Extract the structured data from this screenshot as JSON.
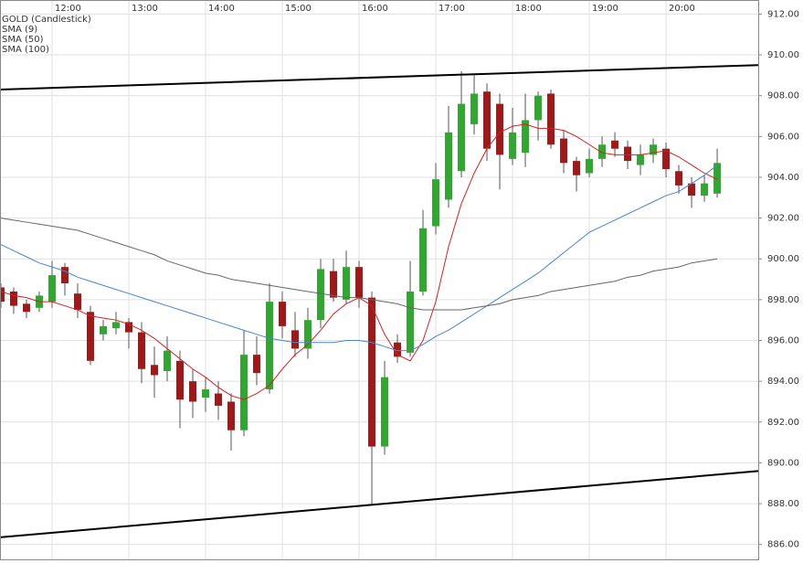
{
  "chart_data": {
    "type": "candlestick",
    "categories": [
      null,
      null,
      null,
      null,
      "12:00",
      null,
      null,
      null,
      null,
      null,
      "13:00",
      null,
      null,
      null,
      null,
      null,
      "14:00",
      null,
      null,
      null,
      null,
      null,
      "15:00",
      null,
      null,
      null,
      null,
      null,
      "16:00",
      null,
      null,
      null,
      null,
      null,
      "17:00",
      null,
      null,
      null,
      null,
      null,
      "18:00",
      null,
      null,
      null,
      null,
      null,
      "19:00",
      null,
      null,
      null,
      null,
      null,
      "20:00",
      null,
      null,
      null,
      null
    ],
    "candles": {
      "name": "GOLD (Candlestick)",
      "color": "#999999",
      "up_color": "#33a532",
      "down_color": "#9e1a1a",
      "open": [
        898.6,
        898.4,
        897.8,
        897.6,
        897.9,
        899.6,
        898.3,
        897.4,
        896.3,
        896.6,
        896.9,
        896.4,
        894.8,
        894.5,
        895.0,
        894.0,
        893.2,
        893.4,
        893.0,
        891.6,
        895.3,
        893.6,
        897.9,
        896.5,
        895.6,
        897.0,
        899.4,
        898.0,
        899.6,
        898.1,
        890.8,
        895.9,
        895.4,
        898.4,
        901.6,
        902.9,
        904.3,
        906.6,
        908.2,
        907.6,
        904.9,
        905.2,
        906.8,
        908.1,
        905.9,
        904.8,
        904.2,
        904.9,
        905.8,
        905.5,
        904.6,
        905.1,
        905.4,
        904.3,
        903.7,
        903.1,
        903.2
      ],
      "high": [
        898.8,
        898.6,
        898.0,
        898.4,
        899.9,
        899.8,
        898.8,
        897.7,
        897.0,
        897.4,
        897.1,
        896.9,
        895.7,
        896.2,
        895.5,
        894.6,
        894.2,
        894.0,
        893.4,
        896.5,
        896.2,
        898.8,
        898.4,
        897.4,
        897.6,
        900.0,
        900.0,
        900.4,
        899.9,
        898.4,
        895.0,
        896.3,
        899.9,
        902.4,
        904.7,
        907.5,
        909.2,
        909.0,
        908.6,
        908.1,
        907.4,
        908.1,
        908.2,
        908.3,
        906.3,
        905.0,
        905.4,
        906.0,
        906.2,
        905.8,
        905.6,
        905.9,
        905.7,
        904.6,
        904.0,
        904.1,
        905.4
      ],
      "low": [
        897.6,
        897.3,
        897.1,
        897.4,
        897.6,
        898.2,
        897.1,
        894.8,
        896.0,
        896.3,
        895.6,
        893.9,
        893.2,
        894.0,
        891.7,
        892.2,
        892.5,
        892.1,
        890.6,
        891.3,
        893.8,
        893.4,
        896.1,
        895.2,
        895.1,
        896.6,
        897.9,
        897.8,
        897.6,
        888.0,
        890.4,
        894.9,
        895.2,
        898.2,
        901.2,
        902.5,
        904.0,
        906.1,
        904.8,
        903.4,
        904.6,
        904.5,
        905.8,
        905.4,
        904.2,
        903.3,
        904.0,
        904.5,
        905.0,
        904.4,
        904.1,
        904.7,
        904.0,
        903.2,
        902.5,
        902.8,
        903.0
      ],
      "close": [
        897.9,
        897.7,
        897.4,
        898.2,
        899.2,
        898.8,
        897.5,
        895.0,
        896.7,
        896.9,
        896.4,
        894.6,
        894.3,
        895.5,
        893.1,
        893.0,
        893.6,
        892.8,
        891.6,
        895.3,
        894.4,
        897.9,
        896.7,
        895.6,
        897.0,
        899.5,
        898.1,
        899.6,
        898.1,
        890.8,
        894.2,
        895.2,
        898.4,
        901.5,
        903.9,
        906.2,
        907.6,
        908.1,
        905.4,
        905.1,
        906.2,
        906.8,
        908.0,
        905.6,
        904.7,
        904.1,
        904.9,
        905.6,
        905.4,
        904.8,
        905.1,
        905.6,
        904.4,
        903.6,
        903.1,
        903.7,
        904.7
      ]
    },
    "series": [
      {
        "name": "SMA (9)",
        "color": "#d42020",
        "values": [
          898.4,
          898.2,
          898.1,
          897.9,
          897.9,
          897.7,
          897.5,
          897.2,
          897.1,
          897.0,
          896.8,
          896.5,
          896.1,
          895.6,
          895.1,
          894.6,
          894.2,
          893.7,
          893.3,
          893.1,
          893.4,
          893.8,
          894.6,
          895.3,
          895.8,
          896.5,
          897.3,
          897.8,
          898.1,
          897.7,
          896.3,
          895.3,
          895.0,
          896.0,
          897.9,
          900.6,
          902.7,
          904.2,
          905.4,
          906.2,
          906.5,
          906.6,
          906.4,
          906.4,
          906.3,
          906.0,
          905.6,
          905.2,
          905.1,
          905.1,
          905.1,
          905.2,
          905.3,
          905.0,
          904.6,
          904.2,
          903.9
        ]
      },
      {
        "name": "SMA (50)",
        "color": "#4a86c8",
        "values": [
          900.7,
          900.4,
          900.1,
          899.8,
          899.6,
          899.4,
          899.1,
          898.9,
          898.7,
          898.5,
          898.3,
          898.1,
          897.9,
          897.7,
          897.5,
          897.3,
          897.1,
          896.9,
          896.7,
          896.5,
          896.3,
          896.1,
          896.0,
          895.9,
          895.9,
          895.9,
          895.9,
          896.0,
          896.0,
          895.9,
          895.7,
          895.5,
          895.5,
          895.8,
          896.2,
          896.5,
          896.9,
          897.3,
          897.7,
          898.1,
          898.5,
          898.9,
          899.3,
          899.8,
          900.3,
          900.8,
          901.3,
          901.6,
          901.9,
          902.2,
          902.5,
          902.8,
          903.1,
          903.3,
          903.7,
          904.1,
          904.6
        ]
      },
      {
        "name": "SMA (100)",
        "color": "#666666",
        "values": [
          902.0,
          901.9,
          901.8,
          901.7,
          901.6,
          901.5,
          901.4,
          901.2,
          901.0,
          900.8,
          900.6,
          900.4,
          900.2,
          899.9,
          899.7,
          899.5,
          899.3,
          899.2,
          899.0,
          898.9,
          898.8,
          898.7,
          898.6,
          898.5,
          898.4,
          898.3,
          898.2,
          898.1,
          898.1,
          898.0,
          897.9,
          897.8,
          897.6,
          897.5,
          897.5,
          897.5,
          897.5,
          897.6,
          897.7,
          897.8,
          898.0,
          898.1,
          898.2,
          898.4,
          898.5,
          898.6,
          898.7,
          898.8,
          898.9,
          899.1,
          899.2,
          899.4,
          899.5,
          899.6,
          899.8,
          899.9,
          900.0
        ]
      }
    ],
    "trendlines": [
      {
        "color": "#000000",
        "x": [
          -0.07,
          59.21
        ],
        "values": [
          908.3,
          909.5
        ]
      },
      {
        "color": "#000000",
        "x": [
          -0.07,
          59.21
        ],
        "values": [
          886.35,
          889.6
        ]
      }
    ],
    "xlim": [
      -0.07,
      59.21
    ],
    "ylim": [
      885.27,
      912.69
    ],
    "yticks": [
      {
        "value": 886,
        "label": "886.00"
      },
      {
        "value": 888,
        "label": "888.00"
      },
      {
        "value": 890,
        "label": "890.00"
      },
      {
        "value": 892,
        "label": "892.00"
      },
      {
        "value": 894,
        "label": "894.00"
      },
      {
        "value": 896,
        "label": "896.00"
      },
      {
        "value": 898,
        "label": "898.00"
      },
      {
        "value": 900,
        "label": "900.00"
      },
      {
        "value": 902,
        "label": "902.00"
      },
      {
        "value": 904,
        "label": "904.00"
      },
      {
        "value": 906,
        "label": "906.00"
      },
      {
        "value": 908,
        "label": "908.00"
      },
      {
        "value": 910,
        "label": "910.00"
      },
      {
        "value": 912,
        "label": "912.00"
      }
    ],
    "grid": true
  }
}
